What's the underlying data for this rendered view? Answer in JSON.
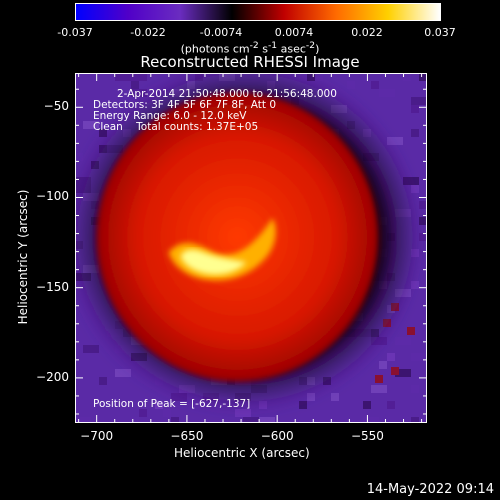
{
  "colorbar": {
    "ticks": [
      "-0.037",
      "-0.022",
      "-0.0074",
      "0.0074",
      "0.022",
      "0.037"
    ],
    "units_prefix": "(photons cm",
    "units_sup1": "-2",
    "units_mid": " s",
    "units_sup2": "-1",
    "units_suffix": " asec",
    "units_sup3": "-2",
    "units_end": ")",
    "colors": [
      "#0000ff",
      "#5000c8",
      "#6a2cc0",
      "#000000",
      "#c00000",
      "#ff6a00",
      "#ffd000",
      "#ffffff"
    ]
  },
  "info": {
    "line1": "2-Apr-2014 21:50:48.000 to 21:56:48.000",
    "line2": "Detectors: 3F 4F 5F 6F 7F 8F, Att 0",
    "line3": "Energy Range: 6.0 - 12.0 keV",
    "line4": "Clean    Total counts: 1.37E+05",
    "peak": "Position of Peak = [-627,-137]"
  },
  "footer": {
    "timestamp": "14-May-2022 09:14"
  },
  "chart_data": {
    "type": "heatmap",
    "title": "Reconstructed RHESSI Image",
    "xlabel": "Heliocentric X (arcsec)",
    "ylabel": "Heliocentric Y (arcsec)",
    "xlim": [
      -712,
      -517
    ],
    "ylim": [
      -225,
      -31
    ],
    "xticks": [
      -700,
      -650,
      -600,
      -550
    ],
    "yticks": [
      -50,
      -100,
      -150,
      -200
    ],
    "zlim": [
      -0.037,
      0.037
    ],
    "peak": [
      -627,
      -137
    ],
    "source": {
      "cx": -622,
      "cy": -122,
      "r_core": 40,
      "r_halo": 50
    }
  }
}
